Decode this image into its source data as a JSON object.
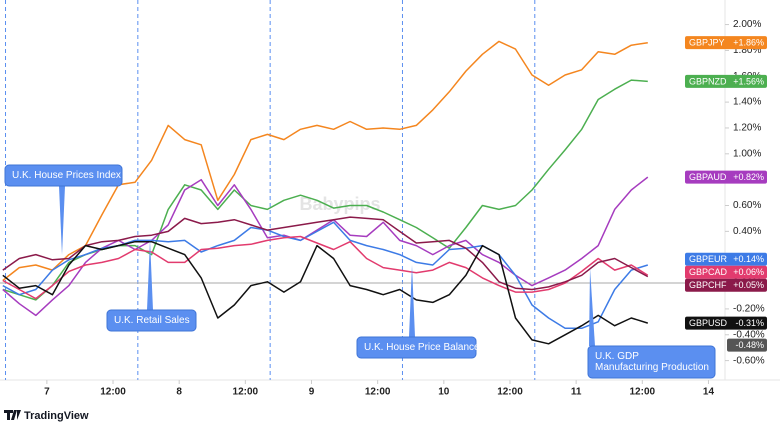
{
  "chart_data": {
    "type": "line",
    "watermark": "Babypips",
    "brand": "TradingView",
    "x": [
      -8,
      -5,
      -2,
      1,
      4,
      7,
      10,
      13,
      16,
      19,
      22,
      25,
      28,
      31,
      34,
      37,
      40,
      43,
      46,
      49,
      52,
      55,
      58,
      61,
      64,
      67,
      70,
      73,
      76,
      79,
      82,
      85,
      88,
      91,
      94,
      97,
      100,
      103,
      106,
      109
    ],
    "xlim": [
      -8.5,
      123
    ],
    "xticks": [
      {
        "value": 0,
        "label": "7"
      },
      {
        "value": 12,
        "label": "12:00"
      },
      {
        "value": 24,
        "label": "8"
      },
      {
        "value": 36,
        "label": "12:00"
      },
      {
        "value": 48,
        "label": "9"
      },
      {
        "value": 60,
        "label": "12:00"
      },
      {
        "value": 72,
        "label": "10"
      },
      {
        "value": 84,
        "label": "12:00"
      },
      {
        "value": 96,
        "label": "11"
      },
      {
        "value": 108,
        "label": "12:00"
      },
      {
        "value": 120,
        "label": "14"
      }
    ],
    "ylim": [
      -0.75,
      2.19
    ],
    "yticks": [
      {
        "value": 2,
        "label": "2.00%"
      },
      {
        "value": 1.8,
        "label": "1.80%"
      },
      {
        "value": 1.6,
        "label": "1.60%"
      },
      {
        "value": 1.4,
        "label": "1.40%"
      },
      {
        "value": 1.2,
        "label": "1.20%"
      },
      {
        "value": 1,
        "label": "1.00%"
      },
      {
        "value": 0.8,
        "label": "0.80%"
      },
      {
        "value": 0.6,
        "label": "0.60%"
      },
      {
        "value": 0.4,
        "label": "0.40%"
      },
      {
        "value": 0.2,
        "label": "0.20%"
      },
      {
        "value": 0,
        "label": "0.00%"
      },
      {
        "value": -0.2,
        "label": "-0.20%"
      },
      {
        "value": -0.4,
        "label": "-0.40%"
      },
      {
        "value": -0.6,
        "label": "-0.60%"
      }
    ],
    "grid": false,
    "event_times": [
      -7.5,
      16.5,
      40.5,
      64.5,
      88.5
    ],
    "series": [
      {
        "name": "GBPJPY",
        "color": "#f4861f",
        "end_label": {
          "value": 1.86,
          "label": "+1.86%"
        },
        "values": [
          0.02,
          0.12,
          0.14,
          0.1,
          0.22,
          0.29,
          0.53,
          0.76,
          0.78,
          0.95,
          1.22,
          1.11,
          1.07,
          0.64,
          0.84,
          1.11,
          1.15,
          1.11,
          1.19,
          1.22,
          1.19,
          1.25,
          1.19,
          1.2,
          1.19,
          1.22,
          1.34,
          1.48,
          1.64,
          1.77,
          1.87,
          1.81,
          1.61,
          1.53,
          1.61,
          1.65,
          1.79,
          1.77,
          1.84,
          1.86
        ]
      },
      {
        "name": "GBPNZD",
        "color": "#4caf50",
        "end_label": {
          "value": 1.56,
          "label": "+1.56%"
        },
        "values": [
          -0.05,
          -0.09,
          -0.13,
          -0.02,
          0.16,
          0.22,
          0.26,
          0.29,
          0.29,
          0.22,
          0.57,
          0.76,
          0.72,
          0.57,
          0.72,
          0.6,
          0.57,
          0.64,
          0.68,
          0.64,
          0.58,
          0.6,
          0.6,
          0.55,
          0.49,
          0.43,
          0.35,
          0.27,
          0.43,
          0.6,
          0.57,
          0.6,
          0.72,
          0.88,
          1.03,
          1.19,
          1.42,
          1.5,
          1.57,
          1.56
        ]
      },
      {
        "name": "GBPAUD",
        "color": "#a63cbf",
        "end_label": {
          "value": 0.82,
          "label": "+0.82%"
        },
        "values": [
          -0.05,
          -0.16,
          -0.25,
          -0.13,
          -0.02,
          0.16,
          0.27,
          0.33,
          0.26,
          0.33,
          0.45,
          0.72,
          0.8,
          0.6,
          0.76,
          0.57,
          0.35,
          0.37,
          0.33,
          0.41,
          0.49,
          0.37,
          0.36,
          0.47,
          0.33,
          0.29,
          0.22,
          0.29,
          0.33,
          0.22,
          0.16,
          0.06,
          -0.02,
          0.04,
          0.1,
          0.19,
          0.29,
          0.57,
          0.72,
          0.82
        ]
      },
      {
        "name": "GBPEUR",
        "color": "#3d7be6",
        "end_label": {
          "value": 0.14,
          "label": "+0.14%"
        },
        "values": [
          -0.02,
          -0.09,
          -0.05,
          0.1,
          0.18,
          0.22,
          0.27,
          0.29,
          0.33,
          0.33,
          0.32,
          0.33,
          0.24,
          0.29,
          0.33,
          0.43,
          0.41,
          0.36,
          0.33,
          0.4,
          0.47,
          0.33,
          0.29,
          0.26,
          0.22,
          0.16,
          0.14,
          0.26,
          0.27,
          0.29,
          0.22,
          0.06,
          -0.17,
          -0.27,
          -0.35,
          -0.35,
          -0.3,
          -0.05,
          0.1,
          0.14
        ]
      },
      {
        "name": "GBPCAD",
        "color": "#e23b6e",
        "end_label": {
          "value": 0.06,
          "label": "+0.06%"
        },
        "values": [
          0.02,
          -0.05,
          -0.12,
          -0.02,
          0.09,
          0.14,
          0.16,
          0.19,
          0.26,
          0.24,
          0.16,
          0.16,
          0.26,
          0.27,
          0.29,
          0.3,
          0.33,
          0.35,
          0.36,
          0.31,
          0.26,
          0.32,
          0.19,
          0.12,
          0.1,
          0.08,
          0.1,
          0.16,
          0.12,
          0.04,
          -0.02,
          -0.07,
          -0.07,
          -0.05,
          0.0,
          0.09,
          0.19,
          0.1,
          0.14,
          0.06
        ]
      },
      {
        "name": "GBPCHF",
        "color": "#8b1a4a",
        "end_label": {
          "value": 0.05,
          "label": "+0.05%"
        },
        "values": [
          0.1,
          0.19,
          0.22,
          0.18,
          0.19,
          0.29,
          0.32,
          0.33,
          0.36,
          0.37,
          0.4,
          0.5,
          0.46,
          0.47,
          0.49,
          0.45,
          0.41,
          0.43,
          0.45,
          0.47,
          0.49,
          0.51,
          0.5,
          0.49,
          0.4,
          0.31,
          0.32,
          0.33,
          0.27,
          0.16,
          0.01,
          -0.04,
          -0.05,
          -0.03,
          0.01,
          0.06,
          0.16,
          0.19,
          0.12,
          0.05
        ]
      },
      {
        "name": "GBPUSD",
        "color": "#111111",
        "end_label": {
          "value": -0.31,
          "label": "-0.31%"
        },
        "values": [
          0.06,
          -0.04,
          -0.02,
          -0.09,
          0.14,
          0.29,
          0.26,
          0.29,
          0.32,
          0.32,
          0.27,
          0.22,
          0.04,
          -0.27,
          -0.17,
          -0.02,
          0.01,
          -0.07,
          0.01,
          0.29,
          0.19,
          -0.02,
          -0.05,
          -0.09,
          -0.05,
          -0.13,
          -0.15,
          -0.09,
          0.06,
          0.29,
          0.22,
          -0.27,
          -0.44,
          -0.47,
          -0.4,
          -0.33,
          -0.25,
          -0.33,
          -0.27,
          -0.31
        ]
      }
    ],
    "extra_tags": [
      {
        "value": -0.48,
        "label": "-0.48%",
        "color": "#555555"
      }
    ],
    "annotations": [
      [
        "U.K. House Prices Index"
      ],
      [
        "U.K. Retail Sales"
      ],
      [
        "U.K. House Price Balance"
      ],
      [
        "U.K. GDP",
        "Manufacturing Production"
      ]
    ]
  }
}
